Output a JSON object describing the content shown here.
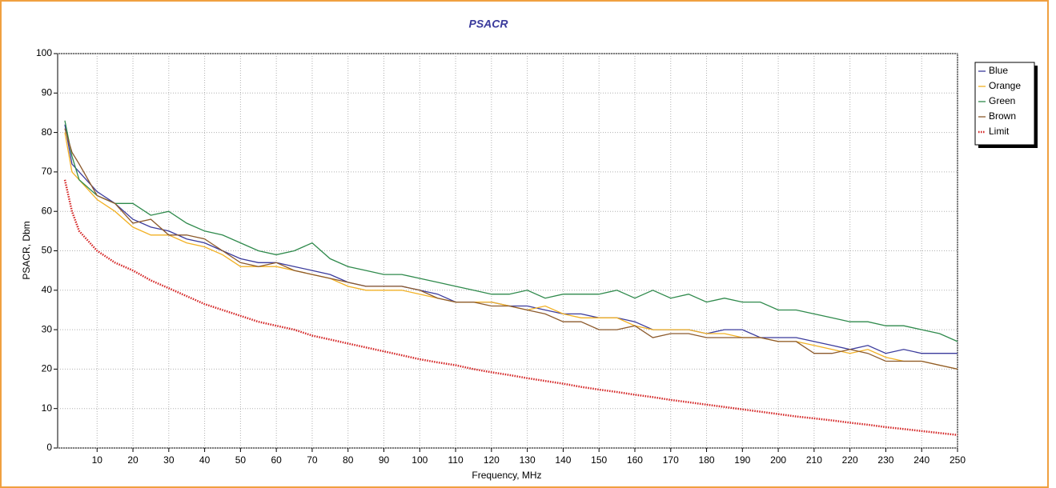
{
  "chart_data": {
    "type": "line",
    "title": "PSACR",
    "x_label": "Frequency, MHz",
    "y_label": "PSACR, Dbm",
    "x": [
      1,
      3,
      5,
      10,
      15,
      20,
      25,
      30,
      35,
      40,
      45,
      50,
      55,
      60,
      65,
      70,
      75,
      80,
      85,
      90,
      95,
      100,
      105,
      110,
      115,
      120,
      125,
      130,
      135,
      140,
      145,
      150,
      155,
      160,
      165,
      170,
      175,
      180,
      185,
      190,
      195,
      200,
      205,
      210,
      215,
      220,
      225,
      230,
      235,
      240,
      245,
      250
    ],
    "series": [
      {
        "name": "Blue",
        "color": "#3b3b9c",
        "style": "solid",
        "values": [
          82,
          72,
          70,
          65,
          62,
          58,
          56,
          55,
          53,
          52,
          50,
          48,
          47,
          47,
          46,
          45,
          44,
          42,
          41,
          41,
          41,
          40,
          39,
          37,
          37,
          37,
          36,
          36,
          35,
          34,
          34,
          33,
          33,
          32,
          30,
          30,
          30,
          29,
          30,
          30,
          28,
          28,
          28,
          27,
          26,
          25,
          26,
          24,
          25,
          24,
          24,
          24
        ]
      },
      {
        "name": "Orange",
        "color": "#f2b124",
        "style": "solid",
        "values": [
          80,
          70,
          68,
          63,
          60,
          56,
          54,
          54,
          52,
          51,
          49,
          46,
          46,
          46,
          45,
          44,
          43,
          41,
          40,
          40,
          40,
          39,
          38,
          37,
          37,
          37,
          36,
          35,
          36,
          34,
          33,
          33,
          33,
          31,
          30,
          30,
          30,
          29,
          29,
          28,
          28,
          27,
          27,
          26,
          25,
          24,
          25,
          23,
          22,
          22,
          21,
          20
        ]
      },
      {
        "name": "Green",
        "color": "#2f8a4c",
        "style": "solid",
        "values": [
          83,
          74,
          68,
          64,
          62,
          62,
          59,
          60,
          57,
          55,
          54,
          52,
          50,
          49,
          50,
          52,
          48,
          46,
          45,
          44,
          44,
          43,
          42,
          41,
          40,
          39,
          39,
          40,
          38,
          39,
          39,
          39,
          40,
          38,
          40,
          38,
          39,
          37,
          38,
          37,
          37,
          35,
          35,
          34,
          33,
          32,
          32,
          31,
          31,
          30,
          29,
          27
        ]
      },
      {
        "name": "Brown",
        "color": "#8c5a2c",
        "style": "solid",
        "values": [
          81,
          75,
          72,
          64,
          62,
          57,
          58,
          54,
          54,
          53,
          50,
          47,
          46,
          47,
          45,
          44,
          43,
          42,
          41,
          41,
          41,
          40,
          38,
          37,
          37,
          36,
          36,
          35,
          34,
          32,
          32,
          30,
          30,
          31,
          28,
          29,
          29,
          28,
          28,
          28,
          28,
          27,
          27,
          24,
          24,
          25,
          24,
          22,
          22,
          22,
          21,
          20
        ]
      },
      {
        "name": "Limit",
        "color": "#d42424",
        "style": "dotted",
        "values": [
          68,
          60,
          55,
          50,
          47,
          45,
          42.5,
          40.5,
          38.5,
          36.5,
          35,
          33.5,
          32,
          31,
          30,
          28.5,
          27.5,
          26.5,
          25.5,
          24.5,
          23.5,
          22.5,
          21.7,
          21,
          20,
          19.2,
          18.5,
          17.7,
          17,
          16.3,
          15.5,
          14.8,
          14.2,
          13.5,
          12.9,
          12.2,
          11.6,
          11,
          10.4,
          9.8,
          9.2,
          8.6,
          8,
          7.5,
          7,
          6.4,
          5.9,
          5.3,
          4.8,
          4.3,
          3.8,
          3.3
        ]
      }
    ],
    "xlim": [
      -1,
      250
    ],
    "ylim": [
      0,
      100
    ],
    "xticks": [
      10,
      20,
      30,
      40,
      50,
      60,
      70,
      80,
      90,
      100,
      110,
      120,
      130,
      140,
      150,
      160,
      170,
      180,
      190,
      200,
      210,
      220,
      230,
      240,
      250
    ],
    "yticks": [
      0,
      10,
      20,
      30,
      40,
      50,
      60,
      70,
      80,
      90,
      100
    ],
    "grid": true,
    "legend": "right"
  }
}
